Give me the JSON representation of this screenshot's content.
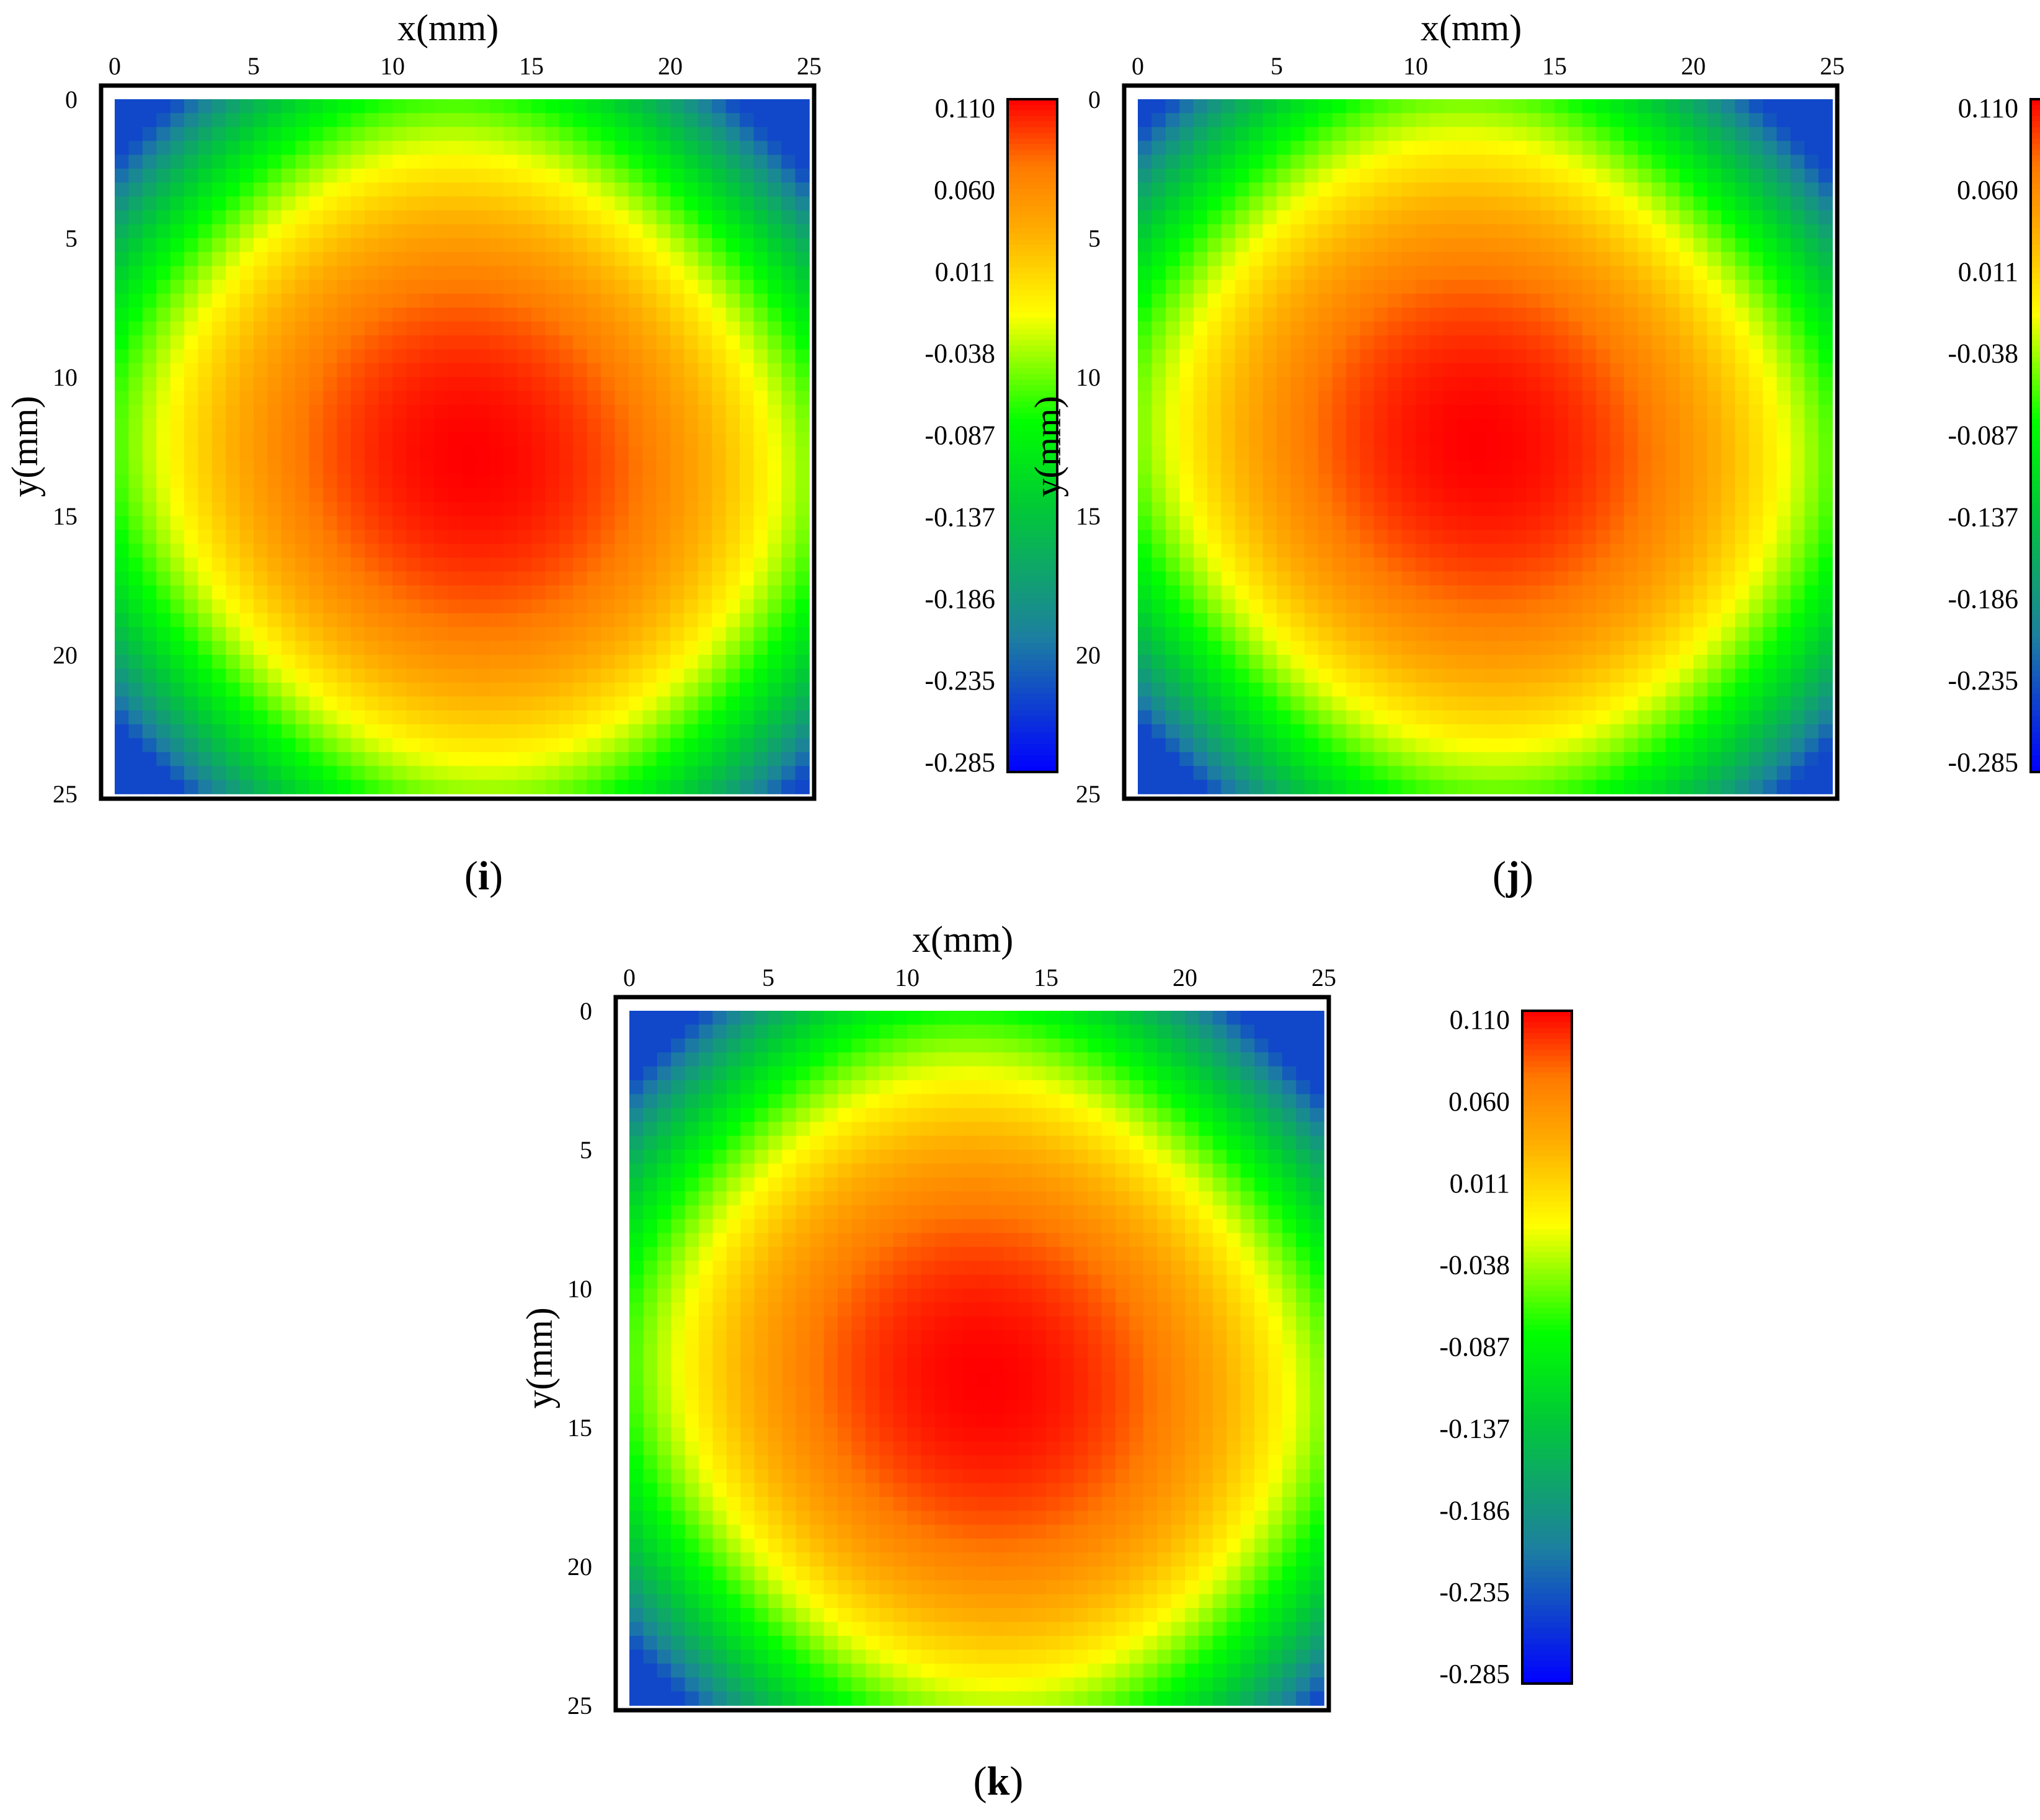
{
  "figure": {
    "colors": {
      "scale": [
        "#0000ff",
        "#1d7fa0",
        "#00cc33",
        "#00ff00",
        "#ffff00",
        "#ffb000",
        "#ff7a00",
        "#ff0000"
      ]
    }
  },
  "chart_data": [
    {
      "type": "heatmap",
      "panel_label": "i",
      "xlabel": "x(mm)",
      "ylabel": "y(mm)",
      "x_ticks": [
        "0",
        "5",
        "10",
        "15",
        "20",
        "25"
      ],
      "y_ticks": [
        "0",
        "5",
        "10",
        "15",
        "20",
        "25"
      ],
      "xlim": [
        0,
        25
      ],
      "ylim": [
        0,
        25
      ],
      "colorbar": {
        "ticks": [
          "0.110",
          "0.060",
          "0.011",
          "-0.038",
          "-0.087",
          "-0.137",
          "-0.186",
          "-0.235",
          "-0.285"
        ],
        "min": -0.285,
        "max": 0.11
      },
      "field": {
        "center_x": 12.8,
        "center_y": 12.9,
        "peak": 0.11,
        "corner_min": -0.24
      }
    },
    {
      "type": "heatmap",
      "panel_label": "j",
      "xlabel": "x(mm)",
      "ylabel": "y(mm)",
      "x_ticks": [
        "0",
        "5",
        "10",
        "15",
        "20",
        "25"
      ],
      "y_ticks": [
        "0",
        "5",
        "10",
        "15",
        "20",
        "25"
      ],
      "xlim": [
        0,
        25
      ],
      "ylim": [
        0,
        25
      ],
      "colorbar": {
        "ticks": [
          "0.110",
          "0.060",
          "0.011",
          "-0.038",
          "-0.087",
          "-0.137",
          "-0.186",
          "-0.235",
          "-0.285"
        ],
        "min": -0.285,
        "max": 0.11
      },
      "field": {
        "center_x": 12.3,
        "center_y": 12.4,
        "peak": 0.11,
        "corner_min": -0.24
      }
    },
    {
      "type": "heatmap",
      "panel_label": "k",
      "xlabel": "x(mm)",
      "ylabel": "y(mm)",
      "x_ticks": [
        "0",
        "5",
        "10",
        "15",
        "20",
        "25"
      ],
      "y_ticks": [
        "0",
        "5",
        "10",
        "15",
        "20",
        "25"
      ],
      "xlim": [
        0,
        25
      ],
      "ylim": [
        0,
        25
      ],
      "colorbar": {
        "ticks": [
          "0.110",
          "0.060",
          "0.011",
          "-0.038",
          "-0.087",
          "-0.137",
          "-0.186",
          "-0.235",
          "-0.285"
        ],
        "min": -0.285,
        "max": 0.11
      },
      "field": {
        "center_x": 12.8,
        "center_y": 13.3,
        "peak": 0.11,
        "corner_min": -0.24
      }
    }
  ]
}
